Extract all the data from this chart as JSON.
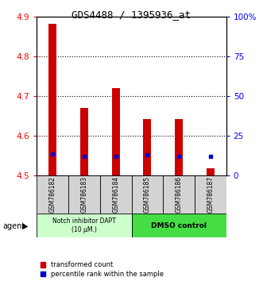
{
  "title": "GDS4488 / 1395936_at",
  "categories": [
    "GSM786182",
    "GSM786183",
    "GSM786184",
    "GSM786185",
    "GSM786186",
    "GSM786187"
  ],
  "bar_tops": [
    4.882,
    4.67,
    4.72,
    4.642,
    4.642,
    4.518
  ],
  "bar_base": 4.5,
  "blue_values": [
    4.555,
    4.548,
    4.548,
    4.553,
    4.548,
    4.548
  ],
  "bar_color": "#cc0000",
  "blue_color": "#0000cc",
  "ylim_left": [
    4.5,
    4.9
  ],
  "yticks_left": [
    4.5,
    4.6,
    4.7,
    4.8,
    4.9
  ],
  "yticks_right": [
    0,
    25,
    50,
    75,
    100
  ],
  "ytick_labels_right": [
    "0",
    "25",
    "50",
    "75",
    "100%"
  ],
  "group1_label": "Notch inhibitor DAPT\n(10 μM.)",
  "group2_label": "DMSO control",
  "group1_color": "#ccffcc",
  "group2_color": "#44dd44",
  "legend_red_label": "transformed count",
  "legend_blue_label": "percentile rank within the sample",
  "agent_label": "agent",
  "bar_width": 0.25,
  "background_color": "#ffffff"
}
